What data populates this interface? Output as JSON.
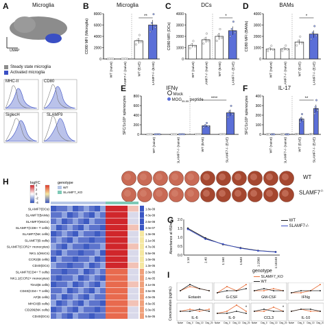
{
  "panel_a": {
    "label": "A",
    "title": "Microglia",
    "umap_axis": "UMAP",
    "legend": [
      {
        "label": "Steady state microglia",
        "color": "#8c8c8c"
      },
      {
        "label": "Activated microglia",
        "color": "#3a4fc4"
      }
    ],
    "histograms": [
      "MHC-II",
      "CD80",
      "SiglecH",
      "SLAMF9"
    ]
  },
  "panel_b": {
    "label": "B",
    "chart_data": {
      "type": "bar",
      "title": "Microglia",
      "ylabel": "CD80 MFI (Microglia)",
      "categories": [
        "WT (naive)",
        "SLAMF7-/- (naive)",
        "WT (EAE)",
        "SLAMF7-/- (EAE)"
      ],
      "values": [
        25,
        30,
        3200,
        6000
      ],
      "ylim": [
        0,
        8000
      ],
      "yticks": [
        "0",
        "2000",
        "4000",
        "6000",
        "8000"
      ],
      "significance": "**"
    }
  },
  "panel_c": {
    "label": "C",
    "chart_data": {
      "type": "bar",
      "title": "DCs",
      "ylabel": "CD80 MFI (DCs)",
      "categories": [
        "WT (naive)",
        "SLAMF7-/- (naive)",
        "WT (EAE)",
        "SLAMF7-/- (EAE)"
      ],
      "values": [
        1200,
        1700,
        2000,
        2500
      ],
      "ylim": [
        0,
        4000
      ],
      "yticks": [
        "0",
        "1000",
        "2000",
        "3000",
        "4000"
      ],
      "significance": "*"
    }
  },
  "panel_d": {
    "label": "D",
    "chart_data": {
      "type": "bar",
      "title": "BAMs",
      "ylabel": "CD80 MFI (BAMs)",
      "categories": [
        "WT (naive)",
        "SLAMF7-/- (naive)",
        "WT (EAE)",
        "SLAMF7-/- (EAE)"
      ],
      "values": [
        880,
        900,
        1500,
        2200
      ],
      "ylim": [
        0,
        4000
      ],
      "yticks": [
        "0",
        "1000",
        "2000",
        "3000",
        "4000"
      ],
      "significance": "*"
    }
  },
  "panel_e": {
    "label": "E",
    "chart_data": {
      "type": "bar",
      "title": "IFNγ",
      "ylabel": "SFC/1x10⁶ splenocytes",
      "categories": [
        "WT (naive)",
        "SLAMF7-/- (naive)",
        "WT (EAE)",
        "SLAMF7-/- (EAE)"
      ],
      "series": [
        {
          "name": "Mock",
          "values": [
            2,
            2,
            5,
            5
          ]
        },
        {
          "name": "MOG35-55 peptide",
          "values": [
            3,
            3,
            180,
            450
          ]
        }
      ],
      "ylim": [
        0,
        800
      ],
      "yticks": [
        "0",
        "200",
        "400",
        "600",
        "800"
      ],
      "significance": "****"
    },
    "legend_mock": "Mock",
    "legend_peptide": "MOG",
    "legend_peptide_sub": "35-55",
    "legend_peptide_suffix": " peptide",
    "wells_wt": "WT",
    "wells_ko": "SLAMF7",
    "wells_ko_sup": "-/-"
  },
  "panel_f": {
    "label": "F",
    "chart_data": {
      "type": "bar",
      "title": "IL-17",
      "ylabel": "SFC/1x10⁶ splenocytes",
      "categories": [
        "WT (naive)",
        "SLAMF7-/- (naive)",
        "WT (EAE)",
        "SLAMF7-/- (EAE)"
      ],
      "series": [
        {
          "name": "Mock",
          "values": [
            1,
            1,
            3,
            3
          ]
        },
        {
          "name": "MOG35-55 peptide",
          "values": [
            1,
            1,
            160,
            270
          ]
        }
      ],
      "ylim": [
        0,
        400
      ],
      "yticks": [
        "0",
        "100",
        "200",
        "300",
        "400"
      ],
      "significance": "**"
    }
  },
  "panel_g": {
    "label": "G",
    "chart_data": {
      "type": "line",
      "xlabel": "",
      "ylabel": "Absorbance at 450nm",
      "categories": [
        "1:10",
        "1:40",
        "1:160",
        "1:640",
        "1:2560",
        "1:10240"
      ],
      "series": [
        {
          "name": "WT",
          "values": [
            1.5,
            0.95,
            0.6,
            0.4,
            0.25,
            0.18
          ]
        },
        {
          "name": "SLAMF7-/-",
          "values": [
            1.45,
            0.9,
            0.62,
            0.38,
            0.24,
            0.17
          ]
        }
      ],
      "ylim": [
        0,
        2.0
      ],
      "yticks": [
        "0.0",
        "0.5",
        "1.0",
        "1.5",
        "2.0"
      ]
    }
  },
  "panel_h": {
    "label": "H",
    "legend_title_logfc": "logFC",
    "legend_title_genotype": "genotype",
    "genotypes": [
      {
        "label": "WT",
        "color": "#b7c7e6"
      },
      {
        "label": "SLAMF7_KO",
        "color": "#7ec9b6"
      }
    ],
    "chart_data": {
      "type": "heatmap",
      "rows": [
        "SLAMF7(DCs)",
        "SLAMF7(BAMs)",
        "SLAMF7(MoCs)",
        "SLAMF7(CD8+ T cells)",
        "SLAMF7(NK cells)",
        "SLAMF7(B cells)",
        "SLAMF7(CCR2+ monocytes)",
        "NK1.1(MoCs)",
        "CCR2(B cells)",
        "CD40(DCs)",
        "SLAMF7(CD4+ T cells)",
        "NK1.1(CCR2+ monocytes)",
        "Tim3(B cells)",
        "CD40(CD4+ T cells)",
        "AF(B cells)",
        "MHCII(B cells)",
        "CD206(NK cells)",
        "CD40(DCs)"
      ],
      "pvalues": [
        "1.8e-09",
        "4.0e-09",
        "2.6e-08",
        "3.0e-07",
        "1.3e-06",
        "2.1e-06",
        "4.7e-06",
        "5.5e-06",
        "1.0e-05",
        "1.3e-05",
        "2.0e-05",
        "2.4e-05",
        "3.1e-05",
        "3.5e-05",
        "4.0e-05",
        "4.6e-05",
        "5.0e-05",
        "5.6e-05"
      ],
      "logfc_ticks": [
        "4",
        "2",
        "0",
        "-2",
        "-4"
      ]
    }
  },
  "panel_i": {
    "label": "I",
    "ylabel": "Concentration (pg/mL)",
    "legend_title": "genotype",
    "legend": [
      {
        "label": "SLAMF7_KO",
        "color": "#e8703a"
      },
      {
        "label": "WT",
        "color": "#222222"
      }
    ],
    "x_categories": [
      "Naive",
      "Day_0",
      "Day_10",
      "Day_20"
    ],
    "chart_data": [
      {
        "type": "line",
        "title": "Eotaxin",
        "series": [
          {
            "name": "SLAMF7_KO",
            "values": [
              3,
              5,
              4,
              3
            ]
          },
          {
            "name": "WT",
            "values": [
              3,
              6,
              4,
              3
            ]
          }
        ]
      },
      {
        "type": "line",
        "title": "G-CSF",
        "series": [
          {
            "name": "SLAMF7_KO",
            "values": [
              2,
              5,
              3,
              6
            ]
          },
          {
            "name": "WT",
            "values": [
              2,
              3,
              3,
              4
            ]
          }
        ]
      },
      {
        "type": "line",
        "title": "GM-CSF",
        "series": [
          {
            "name": "SLAMF7_KO",
            "values": [
              3,
              3,
              4,
              3
            ]
          },
          {
            "name": "WT",
            "values": [
              3,
              4,
              3,
              3
            ]
          }
        ]
      },
      {
        "type": "line",
        "title": "IFNg",
        "series": [
          {
            "name": "SLAMF7_KO",
            "values": [
              2,
              2,
              3,
              6
            ]
          },
          {
            "name": "WT",
            "values": [
              2,
              3,
              3,
              3
            ]
          }
        ]
      },
      {
        "type": "line",
        "title": "IL-6",
        "series": [
          {
            "name": "SLAMF7_KO",
            "values": [
              3,
              4,
              3,
              4
            ]
          },
          {
            "name": "WT",
            "values": [
              3,
              3,
              4,
              3
            ]
          }
        ]
      },
      {
        "type": "line",
        "title": "IL-9",
        "series": [
          {
            "name": "SLAMF7_KO",
            "values": [
              2,
              3,
              6,
              3
            ]
          },
          {
            "name": "WT",
            "values": [
              2,
              2,
              3,
              2
            ]
          }
        ],
        "significance": "*"
      },
      {
        "type": "line",
        "title": "CCL3",
        "series": [
          {
            "name": "SLAMF7_KO",
            "values": [
              3,
              3,
              5,
              3
            ]
          },
          {
            "name": "WT",
            "values": [
              3,
              4,
              3,
              3
            ]
          }
        ],
        "significance": "*"
      },
      {
        "type": "line",
        "title": "IL-10",
        "series": [
          {
            "name": "SLAMF7_KO",
            "values": [
              3,
              4,
              3,
              3
            ]
          },
          {
            "name": "WT",
            "values": [
              3,
              4,
              4,
              3
            ]
          }
        ]
      }
    ]
  }
}
